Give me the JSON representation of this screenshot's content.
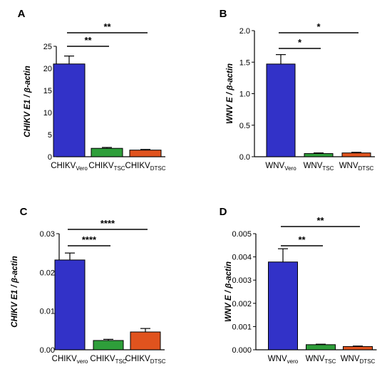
{
  "chart_data": [
    {
      "panel": "A",
      "type": "bar",
      "ylabel": "CHIKV E1 / β-actin",
      "ylim": [
        0,
        25
      ],
      "yticks": [
        0,
        5,
        10,
        15,
        20,
        25
      ],
      "ytick_labels": [
        "0",
        "5",
        "10",
        "15",
        "20",
        "25"
      ],
      "categories": [
        {
          "base": "CHIKV",
          "sub": "Vero"
        },
        {
          "base": "CHIKV",
          "sub": "TSC"
        },
        {
          "base": "CHIKV",
          "sub": "DTSC"
        }
      ],
      "values": [
        21.0,
        1.9,
        1.5
      ],
      "errors": [
        1.8,
        0.2,
        0.15
      ],
      "colors": [
        "#3232c8",
        "#2e9e3a",
        "#e0531e"
      ],
      "significance": [
        {
          "from": 0,
          "to": 1,
          "label": "**"
        },
        {
          "from": 0,
          "to": 2,
          "label": "**"
        }
      ]
    },
    {
      "panel": "B",
      "type": "bar",
      "ylabel": "WNV E / β-actin",
      "ylim": [
        0,
        2.0
      ],
      "yticks": [
        0,
        0.5,
        1.0,
        1.5,
        2.0
      ],
      "ytick_labels": [
        "0.0",
        "0.5",
        "1.0",
        "1.5",
        "2.0"
      ],
      "categories": [
        {
          "base": "WNV",
          "sub": "Vero"
        },
        {
          "base": "WNV",
          "sub": "TSC"
        },
        {
          "base": "WNV",
          "sub": "DTSC"
        }
      ],
      "values": [
        1.47,
        0.05,
        0.06
      ],
      "errors": [
        0.15,
        0.01,
        0.01
      ],
      "colors": [
        "#3232c8",
        "#2e9e3a",
        "#e0531e"
      ],
      "significance": [
        {
          "from": 0,
          "to": 1,
          "label": "*"
        },
        {
          "from": 0,
          "to": 2,
          "label": "*"
        }
      ]
    },
    {
      "panel": "C",
      "type": "bar",
      "ylabel": "CHIKV E1 / β-actin",
      "ylim": [
        0,
        0.03
      ],
      "yticks": [
        0,
        0.01,
        0.02,
        0.03
      ],
      "ytick_labels": [
        "0.00",
        "0.01",
        "0.02",
        "0.03"
      ],
      "categories": [
        {
          "base": "CHIKV",
          "sub": "vero"
        },
        {
          "base": "CHIKV",
          "sub": "TSC"
        },
        {
          "base": "CHIKV",
          "sub": "DTSC"
        }
      ],
      "values": [
        0.0232,
        0.0024,
        0.0046
      ],
      "errors": [
        0.0018,
        0.0003,
        0.0009
      ],
      "colors": [
        "#3232c8",
        "#2e9e3a",
        "#e0531e"
      ],
      "significance": [
        {
          "from": 0,
          "to": 1,
          "label": "****"
        },
        {
          "from": 0,
          "to": 2,
          "label": "****"
        }
      ]
    },
    {
      "panel": "D",
      "type": "bar",
      "ylabel": "WNV E / β-actin",
      "ylim": [
        0,
        0.005
      ],
      "yticks": [
        0,
        0.001,
        0.002,
        0.003,
        0.004,
        0.005
      ],
      "ytick_labels": [
        "0.000",
        "0.001",
        "0.002",
        "0.003",
        "0.004",
        "0.005"
      ],
      "categories": [
        {
          "base": "WNV",
          "sub": "vero"
        },
        {
          "base": "WNV",
          "sub": "TSC"
        },
        {
          "base": "WNV",
          "sub": "DTSC"
        }
      ],
      "values": [
        0.00378,
        0.00022,
        0.00014
      ],
      "errors": [
        0.00057,
        2e-05,
        2e-05
      ],
      "colors": [
        "#3232c8",
        "#2e9e3a",
        "#e0531e"
      ],
      "significance": [
        {
          "from": 0,
          "to": 1,
          "label": "**"
        },
        {
          "from": 0,
          "to": 2,
          "label": "**"
        }
      ]
    }
  ]
}
